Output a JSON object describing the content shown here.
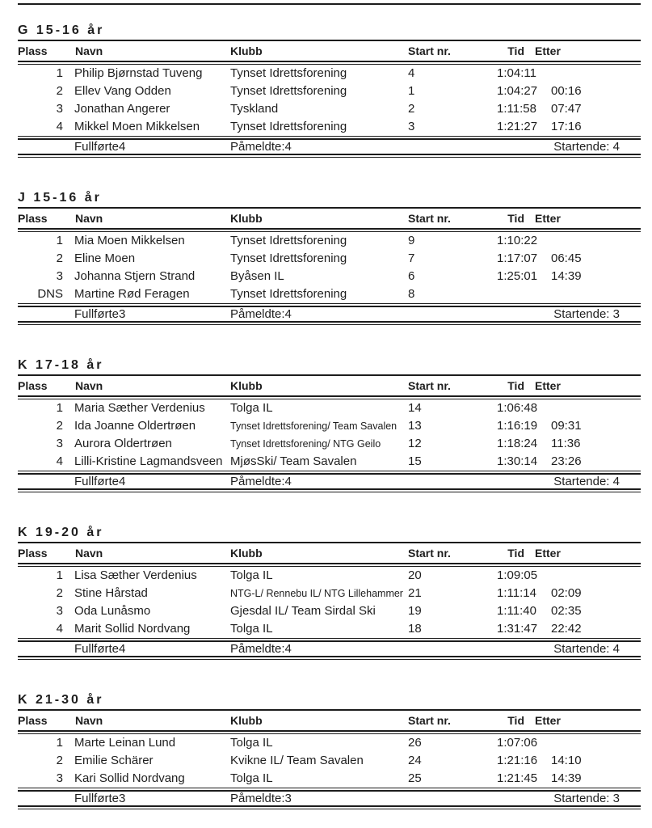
{
  "page": {
    "background": "#ffffff",
    "text_color": "#1e1e1e",
    "rule_color": "#1c1c1c"
  },
  "columns": {
    "plass": "Plass",
    "navn": "Navn",
    "klubb": "Klubb",
    "start_nr": "Start nr.",
    "tid": "Tid",
    "etter": "Etter"
  },
  "sections": [
    {
      "title": "G 15-16 år",
      "rows": [
        {
          "plass": "1",
          "navn": "Philip Bjørnstad Tuveng",
          "klubb": "Tynset Idrettsforening",
          "klubb_small": false,
          "start_nr": "4",
          "tid": "1:04:11",
          "etter": ""
        },
        {
          "plass": "2",
          "navn": "Ellev Vang Odden",
          "klubb": "Tynset Idrettsforening",
          "klubb_small": false,
          "start_nr": "1",
          "tid": "1:04:27",
          "etter": "00:16"
        },
        {
          "plass": "3",
          "navn": "Jonathan Angerer",
          "klubb": "Tyskland",
          "klubb_small": false,
          "start_nr": "2",
          "tid": "1:11:58",
          "etter": "07:47"
        },
        {
          "plass": "4",
          "navn": "Mikkel Moen Mikkelsen",
          "klubb": "Tynset Idrettsforening",
          "klubb_small": false,
          "start_nr": "3",
          "tid": "1:21:27",
          "etter": "17:16"
        }
      ],
      "footer": {
        "fullforte": "Fullførte4",
        "pameldte": "Påmeldte:4",
        "startende": "Startende: 4"
      }
    },
    {
      "title": "J 15-16 år",
      "rows": [
        {
          "plass": "1",
          "navn": "Mia Moen Mikkelsen",
          "klubb": "Tynset Idrettsforening",
          "klubb_small": false,
          "start_nr": "9",
          "tid": "1:10:22",
          "etter": ""
        },
        {
          "plass": "2",
          "navn": "Eline Moen",
          "klubb": "Tynset Idrettsforening",
          "klubb_small": false,
          "start_nr": "7",
          "tid": "1:17:07",
          "etter": "06:45"
        },
        {
          "plass": "3",
          "navn": "Johanna Stjern Strand",
          "klubb": "Byåsen IL",
          "klubb_small": false,
          "start_nr": "6",
          "tid": "1:25:01",
          "etter": "14:39"
        },
        {
          "plass": "DNS",
          "navn": "Martine Rød Feragen",
          "klubb": "Tynset Idrettsforening",
          "klubb_small": false,
          "start_nr": "8",
          "tid": "",
          "etter": ""
        }
      ],
      "footer": {
        "fullforte": "Fullførte3",
        "pameldte": "Påmeldte:4",
        "startende": "Startende: 3"
      }
    },
    {
      "title": "K 17-18 år",
      "rows": [
        {
          "plass": "1",
          "navn": "Maria Sæther Verdenius",
          "klubb": "Tolga IL",
          "klubb_small": false,
          "start_nr": "14",
          "tid": "1:06:48",
          "etter": ""
        },
        {
          "plass": "2",
          "navn": "Ida Joanne Oldertrøen",
          "klubb": "Tynset Idrettsforening/ Team Savalen",
          "klubb_small": true,
          "start_nr": "13",
          "tid": "1:16:19",
          "etter": "09:31"
        },
        {
          "plass": "3",
          "navn": "Aurora Oldertrøen",
          "klubb": "Tynset Idrettsforening/ NTG Geilo",
          "klubb_small": true,
          "start_nr": "12",
          "tid": "1:18:24",
          "etter": "11:36"
        },
        {
          "plass": "4",
          "navn": "Lilli-Kristine Lagmandsveen",
          "klubb": "MjøsSki/ Team Savalen",
          "klubb_small": false,
          "start_nr": "15",
          "tid": "1:30:14",
          "etter": "23:26"
        }
      ],
      "footer": {
        "fullforte": "Fullførte4",
        "pameldte": "Påmeldte:4",
        "startende": "Startende: 4"
      }
    },
    {
      "title": "K 19-20 år",
      "rows": [
        {
          "plass": "1",
          "navn": "Lisa Sæther Verdenius",
          "klubb": "Tolga IL",
          "klubb_small": false,
          "start_nr": "20",
          "tid": "1:09:05",
          "etter": ""
        },
        {
          "plass": "2",
          "navn": "Stine Hårstad",
          "klubb": "NTG-L/ Rennebu IL/ NTG Lillehammer",
          "klubb_small": true,
          "start_nr": "21",
          "tid": "1:11:14",
          "etter": "02:09"
        },
        {
          "plass": "3",
          "navn": "Oda Lunåsmo",
          "klubb": "Gjesdal IL/ Team Sirdal Ski",
          "klubb_small": false,
          "start_nr": "19",
          "tid": "1:11:40",
          "etter": "02:35"
        },
        {
          "plass": "4",
          "navn": "Marit Sollid Nordvang",
          "klubb": "Tolga IL",
          "klubb_small": false,
          "start_nr": "18",
          "tid": "1:31:47",
          "etter": "22:42"
        }
      ],
      "footer": {
        "fullforte": "Fullførte4",
        "pameldte": "Påmeldte:4",
        "startende": "Startende: 4"
      }
    },
    {
      "title": "K 21-30 år",
      "rows": [
        {
          "plass": "1",
          "navn": "Marte Leinan Lund",
          "klubb": "Tolga IL",
          "klubb_small": false,
          "start_nr": "26",
          "tid": "1:07:06",
          "etter": ""
        },
        {
          "plass": "2",
          "navn": "Emilie Schärer",
          "klubb": "Kvikne IL/ Team Savalen",
          "klubb_small": false,
          "start_nr": "24",
          "tid": "1:21:16",
          "etter": "14:10"
        },
        {
          "plass": "3",
          "navn": "Kari Sollid Nordvang",
          "klubb": "Tolga IL",
          "klubb_small": false,
          "start_nr": "25",
          "tid": "1:21:45",
          "etter": "14:39"
        }
      ],
      "footer": {
        "fullforte": "Fullførte3",
        "pameldte": "Påmeldte:3",
        "startende": "Startende: 3"
      }
    }
  ]
}
